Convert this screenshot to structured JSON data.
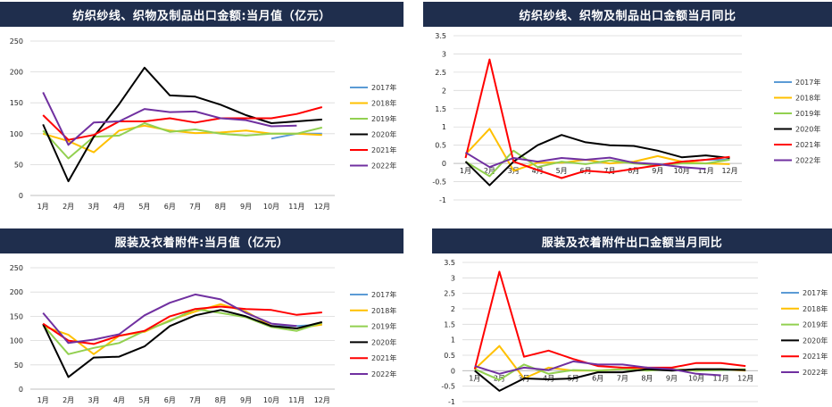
{
  "colors": {
    "2017": "#5b9bd5",
    "2018": "#ffc000",
    "2019": "#92d050",
    "2020": "#000000",
    "2021": "#ff0000",
    "2022": "#7030a0",
    "title_bg": "#1f2e4d"
  },
  "chart_data": [
    {
      "type": "line",
      "title": "纺织纱线、织物及制品出口金额:当月值（亿元）",
      "categories": [
        "1月",
        "2月",
        "3月",
        "4月",
        "5月",
        "6月",
        "7月",
        "8月",
        "9月",
        "10月",
        "11月",
        "12月"
      ],
      "ylim": [
        0,
        250
      ],
      "yticks": [
        "0",
        "50",
        "100",
        "150",
        "200",
        "250"
      ],
      "ytick_values": [
        0,
        50,
        100,
        150,
        200,
        250
      ],
      "series": [
        {
          "name": "2017年",
          "values": [
            null,
            null,
            null,
            null,
            null,
            null,
            null,
            null,
            null,
            92,
            100,
            100
          ]
        },
        {
          "name": "2018年",
          "values": [
            100,
            88,
            70,
            105,
            113,
            105,
            101,
            102,
            105,
            100,
            100,
            98
          ]
        },
        {
          "name": "2019年",
          "values": [
            105,
            60,
            95,
            97,
            117,
            103,
            107,
            100,
            97,
            100,
            100,
            110
          ]
        },
        {
          "name": "2020年",
          "values": [
            115,
            23,
            95,
            148,
            207,
            162,
            160,
            147,
            130,
            117,
            120,
            123
          ]
        },
        {
          "name": "2021年",
          "values": [
            130,
            90,
            98,
            120,
            120,
            125,
            118,
            125,
            125,
            125,
            132,
            143
          ]
        },
        {
          "name": "2022年",
          "values": [
            167,
            82,
            118,
            120,
            140,
            135,
            136,
            125,
            122,
            112,
            113,
            null
          ]
        }
      ]
    },
    {
      "type": "line",
      "title": "纺织纱线、织物及制品出口金额当月同比",
      "categories": [
        "1月",
        "2月",
        "3月",
        "4月",
        "5月",
        "6月",
        "7月",
        "8月",
        "9月",
        "10月",
        "11月",
        "12月"
      ],
      "ylim": [
        -1,
        3.5
      ],
      "yticks": [
        "-1",
        "-0.5",
        "0",
        "0.5",
        "1",
        "1.5",
        "2",
        "2.5",
        "3",
        "3.5"
      ],
      "ytick_values": [
        -1,
        -0.5,
        0,
        0.5,
        1,
        1.5,
        2,
        2.5,
        3,
        3.5
      ],
      "series": [
        {
          "name": "2017年",
          "values": [
            null,
            null,
            null,
            null,
            null,
            null,
            null,
            null,
            null,
            0.05,
            0.1,
            0.1
          ]
        },
        {
          "name": "2018年",
          "values": [
            0.25,
            0.95,
            -0.2,
            0.02,
            0.02,
            0.1,
            0.0,
            0.05,
            0.2,
            0.05,
            0.0,
            -0.02
          ]
        },
        {
          "name": "2019年",
          "values": [
            0.05,
            -0.35,
            0.35,
            -0.1,
            0.05,
            -0.02,
            0.08,
            0.0,
            -0.05,
            0.0,
            0.0,
            0.1
          ]
        },
        {
          "name": "2020年",
          "values": [
            0.05,
            -0.6,
            0.05,
            0.5,
            0.78,
            0.58,
            0.5,
            0.48,
            0.35,
            0.17,
            0.22,
            0.15
          ]
        },
        {
          "name": "2021年",
          "values": [
            0.15,
            2.85,
            0.05,
            -0.18,
            -0.4,
            -0.2,
            -0.25,
            -0.15,
            -0.05,
            0.05,
            0.1,
            0.18
          ]
        },
        {
          "name": "2022年",
          "values": [
            0.3,
            -0.1,
            0.15,
            0.05,
            0.15,
            0.1,
            0.16,
            0.02,
            -0.02,
            -0.1,
            -0.15,
            null
          ]
        }
      ]
    },
    {
      "type": "line",
      "title": "服装及衣着附件:当月值（亿元）",
      "categories": [
        "1月",
        "2月",
        "3月",
        "4月",
        "5月",
        "6月",
        "7月",
        "8月",
        "9月",
        "10月",
        "11月",
        "12月"
      ],
      "ylim": [
        0,
        250
      ],
      "yticks": [
        "0",
        "50",
        "100",
        "150",
        "200",
        "250"
      ],
      "ytick_values": [
        0,
        50,
        100,
        150,
        200,
        250
      ],
      "series": [
        {
          "name": "2017年",
          "values": [
            null,
            null,
            null,
            null,
            null,
            null,
            null,
            null,
            null,
            130,
            130,
            133
          ]
        },
        {
          "name": "2018年",
          "values": [
            130,
            112,
            72,
            110,
            118,
            142,
            160,
            175,
            160,
            130,
            125,
            133
          ]
        },
        {
          "name": "2019年",
          "values": [
            132,
            72,
            85,
            95,
            120,
            140,
            165,
            157,
            148,
            128,
            120,
            137
          ]
        },
        {
          "name": "2020年",
          "values": [
            134,
            25,
            65,
            67,
            88,
            130,
            152,
            163,
            150,
            130,
            125,
            138
          ]
        },
        {
          "name": "2021年",
          "values": [
            135,
            100,
            93,
            110,
            120,
            150,
            165,
            170,
            165,
            163,
            153,
            158
          ]
        },
        {
          "name": "2022年",
          "values": [
            157,
            95,
            102,
            113,
            152,
            178,
            195,
            185,
            157,
            135,
            130,
            null
          ]
        }
      ]
    },
    {
      "type": "line",
      "title": "服装及衣着附件出口金额当月同比",
      "categories": [
        "1月",
        "2月",
        "3月",
        "4月",
        "5月",
        "6月",
        "7月",
        "8月",
        "9月",
        "10月",
        "11月",
        "12月"
      ],
      "ylim": [
        -1,
        3.5
      ],
      "yticks": [
        "-1",
        "-0.5",
        "0",
        "0.5",
        "1",
        "1.5",
        "2",
        "2.5",
        "3",
        "3.5"
      ],
      "ytick_values": [
        -1,
        -0.5,
        0,
        0.5,
        1,
        1.5,
        2,
        2.5,
        3,
        3.5
      ],
      "series": [
        {
          "name": "2017年",
          "values": [
            null,
            null,
            null,
            null,
            null,
            null,
            null,
            null,
            null,
            0.02,
            0.02,
            0.02
          ]
        },
        {
          "name": "2018年",
          "values": [
            0.05,
            0.8,
            -0.25,
            0.1,
            0.0,
            0.0,
            0.05,
            0.1,
            0.05,
            0.0,
            0.05,
            0.0
          ]
        },
        {
          "name": "2019年",
          "values": [
            0.05,
            -0.3,
            0.2,
            -0.1,
            0.02,
            0.0,
            0.05,
            0.0,
            0.05,
            0.0,
            0.02,
            0.05
          ]
        },
        {
          "name": "2020年",
          "values": [
            0.0,
            -0.65,
            -0.25,
            -0.28,
            -0.25,
            -0.05,
            -0.05,
            0.05,
            0.0,
            0.05,
            0.05,
            0.02
          ]
        },
        {
          "name": "2021年",
          "values": [
            0.05,
            3.2,
            0.45,
            0.65,
            0.38,
            0.15,
            0.1,
            0.1,
            0.1,
            0.25,
            0.25,
            0.15
          ]
        },
        {
          "name": "2022年",
          "values": [
            0.15,
            -0.1,
            0.1,
            0.02,
            0.3,
            0.2,
            0.2,
            0.1,
            0.05,
            -0.1,
            -0.15,
            null
          ]
        }
      ]
    }
  ]
}
